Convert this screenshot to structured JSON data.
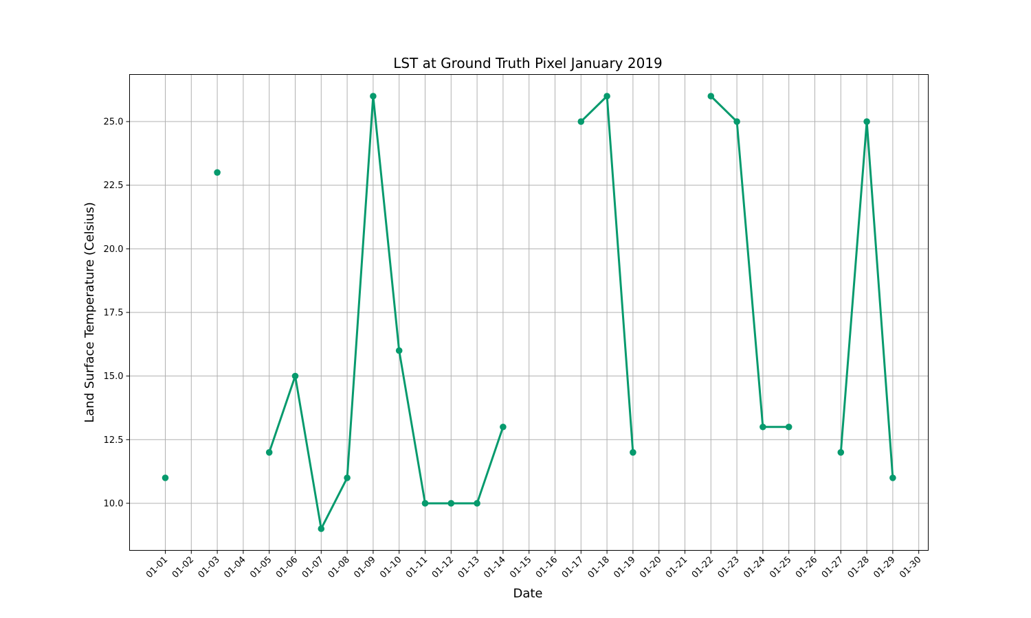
{
  "chart_data": {
    "type": "line",
    "title": "LST at Ground Truth Pixel January 2019",
    "xlabel": "Date",
    "ylabel": "Land Surface Temperature (Celsius)",
    "categories": [
      "01-01",
      "01-02",
      "01-03",
      "01-04",
      "01-05",
      "01-06",
      "01-07",
      "01-08",
      "01-09",
      "01-10",
      "01-11",
      "01-12",
      "01-13",
      "01-14",
      "01-15",
      "01-16",
      "01-17",
      "01-18",
      "01-19",
      "01-20",
      "01-21",
      "01-22",
      "01-23",
      "01-24",
      "01-25",
      "01-26",
      "01-27",
      "01-28",
      "01-29",
      "01-30"
    ],
    "values": [
      11,
      null,
      23,
      null,
      12,
      15,
      9,
      11,
      26,
      16,
      10,
      10,
      10,
      13,
      null,
      null,
      25,
      26,
      12,
      null,
      null,
      26,
      25,
      13,
      13,
      null,
      12,
      25,
      11,
      null
    ],
    "yticks": [
      "10.0",
      "12.5",
      "15.0",
      "17.5",
      "20.0",
      "22.5",
      "25.0"
    ],
    "ylim": [
      8.15,
      26.85
    ],
    "grid": true,
    "line_color": "#069a6d"
  }
}
